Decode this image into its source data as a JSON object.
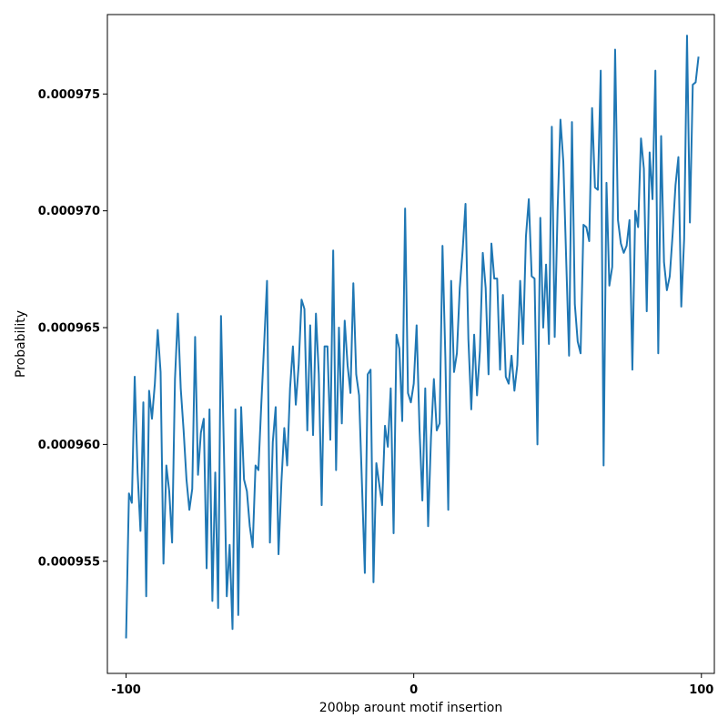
{
  "chart_data": {
    "type": "line",
    "title": "",
    "xlabel": "200bp arount motif insertion",
    "ylabel": "Probability",
    "xlim": [
      -106.5,
      104.5
    ],
    "ylim": [
      0.0009502,
      0.0009784
    ],
    "x_ticks": [
      -100,
      0,
      100
    ],
    "x_tick_labels": [
      "-100",
      "0",
      "100"
    ],
    "y_ticks": [
      0.000955,
      0.00096,
      0.000965,
      0.00097,
      0.000975
    ],
    "y_tick_labels": [
      "0.000955",
      "0.000960",
      "0.000965",
      "0.000970",
      "0.000975"
    ],
    "grid": false,
    "series_color": "#1f77b4",
    "x_start": -100,
    "x_step": 1,
    "values": [
      0.0009517,
      0.0009579,
      0.0009575,
      0.0009629,
      0.0009588,
      0.0009563,
      0.0009618,
      0.0009535,
      0.0009623,
      0.0009611,
      0.0009626,
      0.0009649,
      0.0009631,
      0.0009549,
      0.0009591,
      0.000958,
      0.0009558,
      0.0009628,
      0.0009656,
      0.0009624,
      0.0009606,
      0.0009585,
      0.0009572,
      0.0009581,
      0.0009646,
      0.0009587,
      0.0009605,
      0.0009611,
      0.0009547,
      0.0009615,
      0.0009533,
      0.0009588,
      0.000953,
      0.0009655,
      0.0009598,
      0.0009535,
      0.0009557,
      0.0009521,
      0.0009615,
      0.0009527,
      0.0009616,
      0.0009585,
      0.000958,
      0.0009565,
      0.0009556,
      0.0009591,
      0.0009589,
      0.0009617,
      0.0009643,
      0.000967,
      0.0009558,
      0.0009601,
      0.0009616,
      0.0009553,
      0.0009584,
      0.0009607,
      0.0009591,
      0.0009624,
      0.0009642,
      0.0009617,
      0.0009634,
      0.0009662,
      0.0009658,
      0.0009606,
      0.0009651,
      0.0009604,
      0.0009656,
      0.000963,
      0.0009574,
      0.0009642,
      0.0009642,
      0.0009602,
      0.0009683,
      0.0009589,
      0.000965,
      0.0009609,
      0.0009653,
      0.0009634,
      0.0009622,
      0.0009669,
      0.000963,
      0.0009621,
      0.0009583,
      0.0009545,
      0.000963,
      0.0009632,
      0.0009541,
      0.0009592,
      0.0009583,
      0.0009574,
      0.0009608,
      0.0009599,
      0.0009624,
      0.0009562,
      0.0009647,
      0.0009641,
      0.000961,
      0.0009701,
      0.0009622,
      0.0009618,
      0.0009626,
      0.0009651,
      0.0009607,
      0.0009576,
      0.0009624,
      0.0009565,
      0.0009603,
      0.0009628,
      0.0009606,
      0.0009609,
      0.0009685,
      0.0009637,
      0.0009572,
      0.000967,
      0.0009631,
      0.0009639,
      0.0009667,
      0.0009683,
      0.0009703,
      0.0009645,
      0.0009615,
      0.0009647,
      0.0009621,
      0.000964,
      0.0009682,
      0.0009667,
      0.000963,
      0.0009686,
      0.0009671,
      0.0009671,
      0.0009632,
      0.0009664,
      0.0009629,
      0.0009626,
      0.0009638,
      0.0009623,
      0.0009634,
      0.000967,
      0.0009643,
      0.0009689,
      0.0009705,
      0.0009672,
      0.0009671,
      0.00096,
      0.0009697,
      0.000965,
      0.0009677,
      0.0009643,
      0.0009736,
      0.0009646,
      0.00097,
      0.0009739,
      0.0009721,
      0.0009679,
      0.0009638,
      0.0009738,
      0.000966,
      0.0009644,
      0.0009639,
      0.0009694,
      0.0009693,
      0.0009687,
      0.0009744,
      0.000971,
      0.0009709,
      0.000976,
      0.0009591,
      0.0009712,
      0.0009668,
      0.0009676,
      0.0009769,
      0.0009696,
      0.0009686,
      0.0009682,
      0.0009685,
      0.0009696,
      0.0009632,
      0.00097,
      0.0009693,
      0.0009731,
      0.0009718,
      0.0009657,
      0.0009725,
      0.0009705,
      0.000976,
      0.0009639,
      0.0009732,
      0.0009678,
      0.0009666,
      0.0009672,
      0.000969,
      0.0009711,
      0.0009723,
      0.0009659,
      0.0009688,
      0.0009775,
      0.0009695,
      0.0009754,
      0.0009755,
      0.0009766
    ]
  }
}
